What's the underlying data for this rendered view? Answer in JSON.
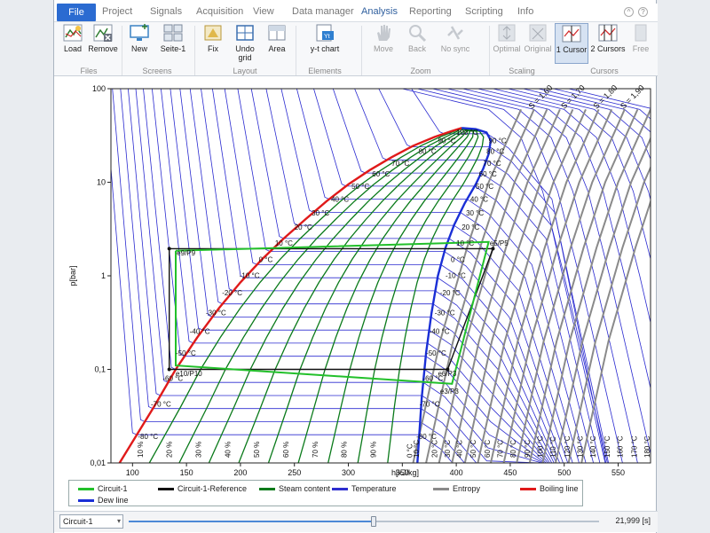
{
  "menu": {
    "items": [
      "File",
      "Project",
      "Signals",
      "Acquisition",
      "View",
      "Data manager",
      "Analysis",
      "Reporting",
      "Scripting",
      "Info"
    ],
    "active": "Analysis"
  },
  "ribbon": {
    "groups": {
      "files": "Files",
      "screens": "Screens",
      "layout": "Layout",
      "elements": "Elements",
      "zoom": "Zoom",
      "scaling": "Scaling",
      "cursors": "Cursors"
    },
    "buttons": {
      "load": "Load",
      "remove": "Remove",
      "new": "New",
      "seite": "Seite-1",
      "fix": "Fix",
      "undo_grid": "Undo grid",
      "area": "Area",
      "yt_chart": "y-t chart",
      "move": "Move",
      "back": "Back",
      "no_sync": "No sync",
      "optimal": "Optimal",
      "original": "Original",
      "one_cursor": "1 Cursor",
      "two_cursors": "2 Cursors",
      "free": "Free"
    }
  },
  "chart_data": {
    "type": "line",
    "ylabel": "p[bar]",
    "xlabel": "h[kJ/kg]",
    "xlim": [
      80,
      580
    ],
    "ylim": [
      0.01,
      100
    ],
    "y_scale": "log",
    "x_ticks": [
      100,
      150,
      200,
      250,
      300,
      350,
      400,
      450,
      500,
      550
    ],
    "y_ticks": [
      {
        "v": 0.01,
        "label": "0,01"
      },
      {
        "v": 0.1,
        "label": "0,1"
      },
      {
        "v": 1,
        "label": "1"
      },
      {
        "v": 10,
        "label": "10"
      },
      {
        "v": 100,
        "label": "100"
      }
    ],
    "critical_point": {
      "h": 405,
      "p": 38
    },
    "boiling_line": [
      [
        88,
        0.01
      ],
      [
        120,
        0.04
      ],
      [
        140,
        0.1
      ],
      [
        160,
        0.22
      ],
      [
        180,
        0.45
      ],
      [
        200,
        0.85
      ],
      [
        220,
        1.5
      ],
      [
        240,
        2.5
      ],
      [
        260,
        4
      ],
      [
        280,
        6.3
      ],
      [
        300,
        9.5
      ],
      [
        320,
        13.5
      ],
      [
        340,
        18.5
      ],
      [
        360,
        24.5
      ],
      [
        380,
        30.5
      ],
      [
        395,
        35
      ],
      [
        405,
        38
      ]
    ],
    "dew_line": [
      [
        405,
        38
      ],
      [
        418,
        37
      ],
      [
        428,
        34
      ],
      [
        432,
        28
      ],
      [
        430,
        20
      ],
      [
        425,
        14
      ],
      [
        418,
        9.5
      ],
      [
        408,
        6
      ],
      [
        398,
        3.5
      ],
      [
        390,
        2
      ],
      [
        383,
        1
      ],
      [
        377,
        0.4
      ],
      [
        372,
        0.15
      ],
      [
        368,
        0.05
      ],
      [
        364,
        0.01
      ]
    ],
    "temperature_labels": [
      {
        "label": "100 °C",
        "h": 400,
        "p": 32
      },
      {
        "label": "90 °C",
        "h": 383,
        "p": 26
      },
      {
        "label": "80 °C",
        "h": 365,
        "p": 20
      },
      {
        "label": "70 °C",
        "h": 340,
        "p": 15
      },
      {
        "label": "60 °C",
        "h": 322,
        "p": 11.5
      },
      {
        "label": "50 °C",
        "h": 303,
        "p": 8.5
      },
      {
        "label": "40 °C",
        "h": 284,
        "p": 6.2
      },
      {
        "label": "30 °C",
        "h": 266,
        "p": 4.4
      },
      {
        "label": "20 °C",
        "h": 250,
        "p": 3.1
      },
      {
        "label": "10 °C",
        "h": 232,
        "p": 2.1
      },
      {
        "label": "0 °C",
        "h": 217,
        "p": 1.4
      },
      {
        "label": "-10 °C",
        "h": 199,
        "p": 0.95
      },
      {
        "label": "-20 °C",
        "h": 183,
        "p": 0.62
      },
      {
        "label": "-30 °C",
        "h": 168,
        "p": 0.38
      },
      {
        "label": "-40 °C",
        "h": 153,
        "p": 0.24
      },
      {
        "label": "-50 °C",
        "h": 140,
        "p": 0.14
      },
      {
        "label": "-60 °C",
        "h": 128,
        "p": 0.075
      },
      {
        "label": "-70 °C",
        "h": 117,
        "p": 0.04
      },
      {
        "label": "-80 °C",
        "h": 105,
        "p": 0.018
      },
      {
        "label": "90 °C",
        "h": 430,
        "p": 26
      },
      {
        "label": "80 °C",
        "h": 428,
        "p": 20
      },
      {
        "label": "70 °C",
        "h": 425,
        "p": 15
      },
      {
        "label": "60 °C",
        "h": 421,
        "p": 11.5
      },
      {
        "label": "50 °C",
        "h": 418,
        "p": 8.5
      },
      {
        "label": "40 °C",
        "h": 413,
        "p": 6.2
      },
      {
        "label": "30 °C",
        "h": 409,
        "p": 4.4
      },
      {
        "label": "20 °C",
        "h": 405,
        "p": 3.1
      },
      {
        "label": "10 °C",
        "h": 400,
        "p": 2.1
      },
      {
        "label": "0 °C",
        "h": 395,
        "p": 1.4
      },
      {
        "label": "-10 °C",
        "h": 390,
        "p": 0.95
      },
      {
        "label": "-20 °C",
        "h": 385,
        "p": 0.62
      },
      {
        "label": "-30 °C",
        "h": 380,
        "p": 0.38
      },
      {
        "label": "-40 °C",
        "h": 375,
        "p": 0.24
      },
      {
        "label": "-50 °C",
        "h": 372,
        "p": 0.14
      },
      {
        "label": "-60 °C",
        "h": 369,
        "p": 0.075
      },
      {
        "label": "-70 °C",
        "h": 366,
        "p": 0.04
      },
      {
        "label": "-80 °C",
        "h": 363,
        "p": 0.018
      }
    ],
    "steam_labels": [
      "10 %",
      "20 %",
      "30 %",
      "40 %",
      "50 %",
      "60 %",
      "70 %",
      "80 %",
      "90 %"
    ],
    "steam_label_h": [
      107,
      134,
      161,
      188,
      215,
      242,
      269,
      296,
      323
    ],
    "entropy_labels": [
      {
        "label": "S = 1,60",
        "h": 470,
        "p": 60
      },
      {
        "label": "S = 1,70",
        "h": 500,
        "p": 60
      },
      {
        "label": "S = 1,80",
        "h": 530,
        "p": 60
      },
      {
        "label": "S = 1,90",
        "h": 555,
        "p": 60
      }
    ],
    "bottom_temp_labels": [
      "0 °C",
      "10 °C",
      "20 °C",
      "30 °C",
      "40 °C",
      "50 °C",
      "60 °C",
      "70 °C",
      "80 °C",
      "90 °C",
      "100 °C",
      "110 °C",
      "120 °C",
      "130 °C",
      "140 °C",
      "150 °C",
      "160 °C",
      "170 °C",
      "180 °C"
    ],
    "bottom_temp_h": [
      360,
      366,
      383,
      395,
      406,
      419,
      432,
      444,
      456,
      469,
      481,
      493,
      506,
      518,
      530,
      543,
      555,
      568,
      580
    ],
    "circuit_1": {
      "points": [
        [
          140,
          1.85
        ],
        [
          430,
          2.3
        ],
        [
          396,
          0.07
        ],
        [
          140,
          0.11
        ],
        [
          140,
          1.85
        ]
      ],
      "labels": [
        {
          "label": "e9/P9",
          "h": 141,
          "p": 1.65
        },
        {
          "label": "e5/P5",
          "h": 431,
          "p": 2.1
        },
        {
          "label": "e3/P3",
          "h": 385,
          "p": 0.055
        },
        {
          "label": "e10/P10",
          "h": 140,
          "p": 0.085
        }
      ]
    },
    "circuit_1_reference": {
      "points": [
        [
          134,
          1.95
        ],
        [
          434,
          1.95
        ],
        [
          392,
          0.1
        ],
        [
          134,
          0.1
        ],
        [
          134,
          1.95
        ]
      ],
      "labels": [
        {
          "label": "e6/P3",
          "h": 383,
          "p": 0.085
        }
      ]
    },
    "legend": [
      {
        "name": "Circuit-1",
        "color": "#22c02a"
      },
      {
        "name": "Circuit-1-Reference",
        "color": "#111111"
      },
      {
        "name": "Steam content",
        "color": "#0a7a1a"
      },
      {
        "name": "Temperature",
        "color": "#2e2ecf"
      },
      {
        "name": "Entropy",
        "color": "#8a8a8a"
      },
      {
        "name": "Boiling line",
        "color": "#e01a1a"
      },
      {
        "name": "Dew line",
        "color": "#1a2fd6"
      }
    ]
  },
  "status": {
    "circuit_select": "Circuit-1",
    "slider_progress": 0.52,
    "time": "21,999 [s]"
  }
}
